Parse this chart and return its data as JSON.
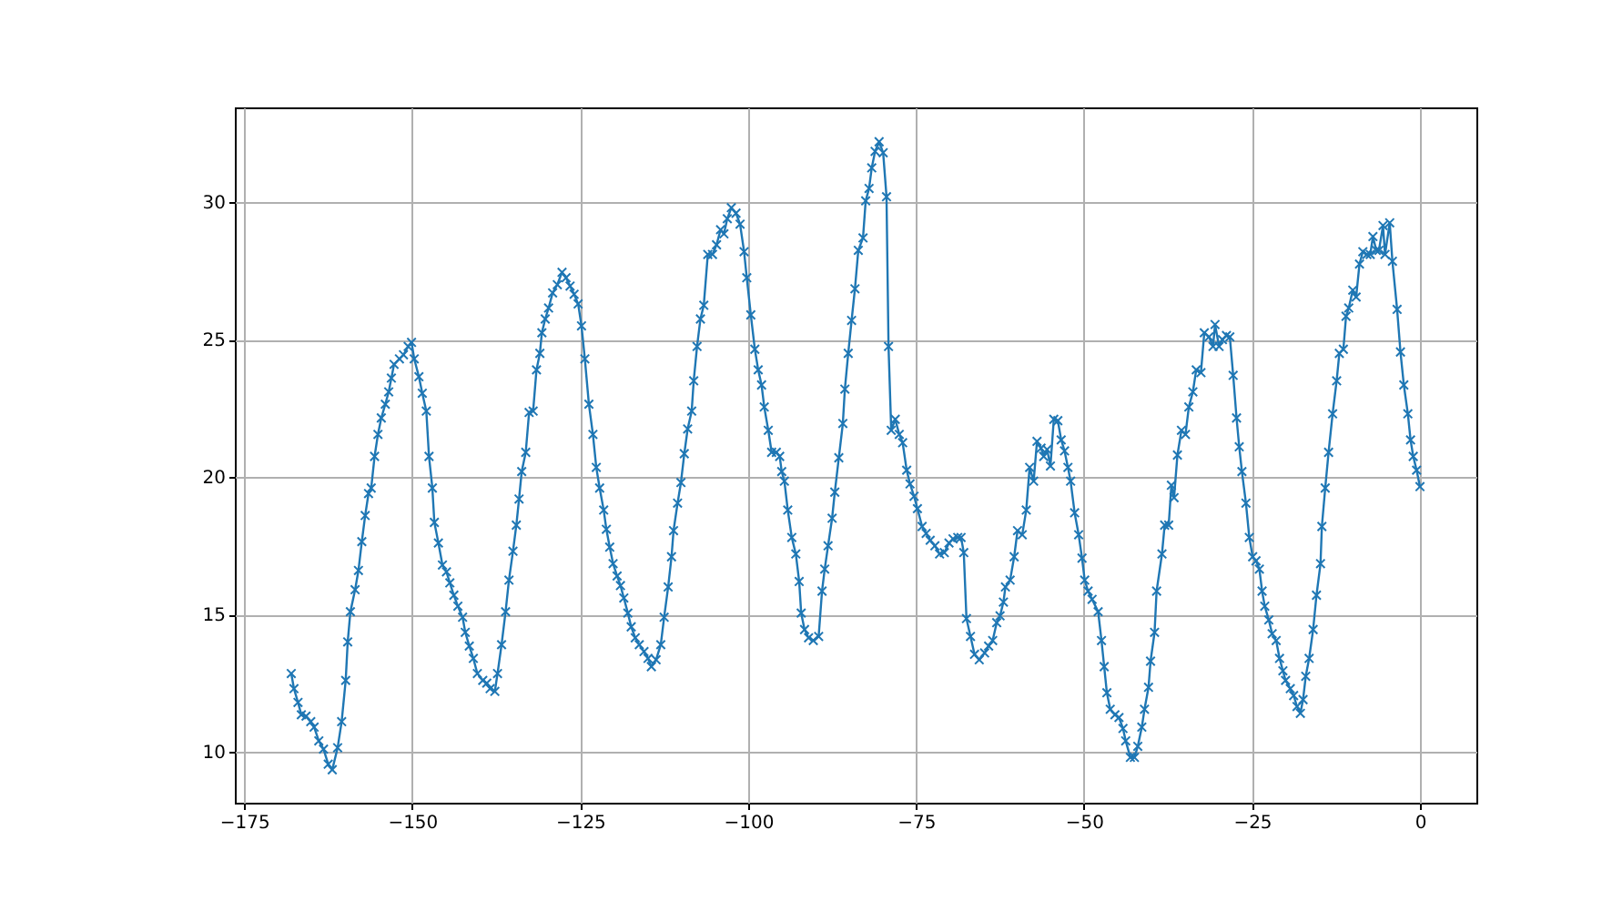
{
  "chart_data": {
    "type": "line",
    "marker": "cross",
    "grid": true,
    "line_style": "solid",
    "xlim": [
      -176.4,
      8.4
    ],
    "ylim": [
      8.15,
      33.45
    ],
    "xticks": [
      -175,
      -150,
      -125,
      -100,
      -75,
      -50,
      -25,
      0
    ],
    "yticks": [
      10,
      15,
      20,
      25,
      30
    ],
    "series": [
      {
        "color": "#1f77b4",
        "x": [
          -168,
          -167.6,
          -167.0,
          -166.5,
          -165.8,
          -165.1,
          -164.6,
          -163.9,
          -163.2,
          -162.5,
          -161.9,
          -161.1,
          -160.5,
          -159.9,
          -159.6,
          -159.2,
          -158.5,
          -158.0,
          -157.5,
          -157.0,
          -156.5,
          -156.1,
          -155.6,
          -155.1,
          -154.6,
          -154.0,
          -153.5,
          -153.1,
          -152.7,
          -151.9,
          -151.3,
          -150.6,
          -150.1,
          -149.7,
          -149.0,
          -148.5,
          -147.9,
          -147.5,
          -147.0,
          -146.7,
          -146.1,
          -145.5,
          -144.9,
          -144.4,
          -143.8,
          -143.2,
          -142.5,
          -142.1,
          -141.5,
          -140.9,
          -140.3,
          -139.5,
          -138.9,
          -138.4,
          -137.7,
          -137.3,
          -136.7,
          -136.1,
          -135.6,
          -135.0,
          -134.5,
          -134.1,
          -133.7,
          -133.1,
          -132.6,
          -132.0,
          -131.5,
          -131.0,
          -130.7,
          -130.2,
          -129.7,
          -129.1,
          -128.4,
          -127.7,
          -127.1,
          -126.5,
          -125.9,
          -125.3,
          -124.8,
          -124.3,
          -123.7,
          -123.1,
          -122.6,
          -122.1,
          -121.5,
          -121.1,
          -120.6,
          -120.1,
          -119.5,
          -119.0,
          -118.5,
          -117.9,
          -117.4,
          -116.8,
          -116.2,
          -115.5,
          -114.9,
          -114.4,
          -113.7,
          -113.0,
          -112.5,
          -111.9,
          -111.4,
          -111.1,
          -110.5,
          -110.0,
          -109.5,
          -109.0,
          -108.4,
          -108.1,
          -107.6,
          -107.1,
          -106.6,
          -106.0,
          -105.3,
          -104.7,
          -104.1,
          -103.6,
          -103.1,
          -102.5,
          -101.8,
          -101.2,
          -100.6,
          -100.2,
          -99.6,
          -99.0,
          -98.5,
          -98.0,
          -97.6,
          -97.0,
          -96.5,
          -95.8,
          -95.3,
          -95.0,
          -94.6,
          -94.1,
          -93.5,
          -92.9,
          -92.4,
          -92.1,
          -91.6,
          -91.0,
          -90.3,
          -89.5,
          -89.0,
          -88.6,
          -88.1,
          -87.5,
          -87.1,
          -86.5,
          -85.9,
          -85.6,
          -85.1,
          -84.6,
          -84.1,
          -83.6,
          -82.9,
          -82.5,
          -82.0,
          -81.6,
          -81.1,
          -80.5,
          -79.9,
          -79.4,
          -79.1,
          -78.7,
          -78.1,
          -77.5,
          -77.0,
          -76.4,
          -75.9,
          -75.3,
          -74.8,
          -74.1,
          -73.5,
          -72.9,
          -72.2,
          -71.5,
          -70.8,
          -70.1,
          -69.5,
          -68.8,
          -68.3,
          -67.9,
          -67.5,
          -66.9,
          -66.3,
          -65.6,
          -64.8,
          -64.2,
          -63.6,
          -63.0,
          -62.5,
          -62.0,
          -61.7,
          -61.0,
          -60.4,
          -59.9,
          -59.2,
          -58.6,
          -58.1,
          -57.5,
          -57.0,
          -56.4,
          -56.0,
          -55.5,
          -55.0,
          -54.5,
          -53.9,
          -53.4,
          -52.9,
          -52.4,
          -52.0,
          -51.4,
          -50.8,
          -50.3,
          -49.9,
          -49.4,
          -48.8,
          -47.9,
          -47.4,
          -47.0,
          -46.6,
          -46.1,
          -45.4,
          -44.8,
          -44.2,
          -43.8,
          -43.1,
          -42.5,
          -42.0,
          -41.4,
          -41.0,
          -40.4,
          -40.1,
          -39.5,
          -39.2,
          -38.4,
          -38.0,
          -37.4,
          -37.0,
          -36.6,
          -36.1,
          -35.5,
          -34.9,
          -34.4,
          -33.8,
          -33.3,
          -32.6,
          -32.1,
          -31.4,
          -30.8,
          -30.5,
          -29.9,
          -29.4,
          -28.8,
          -28.3,
          -27.8,
          -27.3,
          -26.9,
          -26.5,
          -25.9,
          -25.4,
          -24.9,
          -24.4,
          -23.9,
          -23.5,
          -23.1,
          -22.5,
          -22.0,
          -21.4,
          -20.9,
          -20.4,
          -20.0,
          -19.3,
          -18.8,
          -18.3,
          -17.8,
          -17.4,
          -17.0,
          -16.5,
          -15.9,
          -15.4,
          -14.8,
          -14.6,
          -14.1,
          -13.6,
          -13.0,
          -12.4,
          -12.0,
          -11.4,
          -11.0,
          -10.6,
          -10.0,
          -9.5,
          -9.0,
          -8.5,
          -7.9,
          -7.4,
          -7.0,
          -6.5,
          -6.1,
          -5.5,
          -5.2,
          -4.5,
          -4.1,
          -3.4,
          -2.9,
          -2.4,
          -1.8,
          -1.4,
          -1.0,
          -0.5,
          0
        ],
        "values": [
          12.85,
          12.3,
          11.8,
          11.35,
          11.3,
          11.1,
          10.9,
          10.4,
          10.1,
          9.55,
          9.35,
          10.15,
          11.1,
          12.6,
          14.0,
          15.1,
          15.9,
          16.6,
          17.65,
          18.6,
          19.4,
          19.6,
          20.75,
          21.55,
          22.15,
          22.65,
          23.1,
          23.6,
          24.1,
          24.3,
          24.45,
          24.75,
          24.9,
          24.3,
          23.65,
          23.05,
          22.4,
          20.75,
          19.6,
          18.35,
          17.6,
          16.8,
          16.55,
          16.15,
          15.7,
          15.3,
          14.9,
          14.35,
          13.85,
          13.4,
          12.85,
          12.6,
          12.5,
          12.3,
          12.2,
          12.85,
          13.9,
          15.1,
          16.25,
          17.3,
          18.25,
          19.2,
          20.2,
          20.9,
          22.35,
          22.4,
          23.9,
          24.5,
          25.25,
          25.75,
          26.15,
          26.7,
          27.0,
          27.45,
          27.25,
          26.95,
          26.65,
          26.3,
          25.5,
          24.3,
          22.65,
          21.55,
          20.35,
          19.6,
          18.8,
          18.1,
          17.45,
          16.85,
          16.4,
          16.05,
          15.6,
          15.05,
          14.55,
          14.15,
          13.9,
          13.65,
          13.4,
          13.1,
          13.35,
          13.9,
          14.9,
          16.0,
          17.1,
          18.05,
          19.05,
          19.8,
          20.85,
          21.75,
          22.4,
          23.5,
          24.75,
          25.75,
          26.25,
          28.1,
          28.1,
          28.45,
          29.0,
          28.85,
          29.4,
          29.8,
          29.6,
          29.2,
          28.2,
          27.25,
          25.9,
          24.65,
          23.9,
          23.35,
          22.55,
          21.7,
          20.9,
          20.9,
          20.75,
          20.2,
          19.85,
          18.8,
          17.8,
          17.2,
          16.2,
          15.05,
          14.45,
          14.15,
          14.05,
          14.2,
          15.85,
          16.65,
          17.5,
          18.5,
          19.45,
          20.7,
          21.95,
          23.2,
          24.5,
          25.7,
          26.85,
          28.25,
          28.7,
          30.05,
          30.5,
          31.25,
          31.85,
          32.2,
          31.8,
          30.2,
          24.75,
          21.7,
          22.1,
          21.55,
          21.25,
          20.25,
          19.75,
          19.3,
          18.85,
          18.2,
          17.95,
          17.7,
          17.5,
          17.2,
          17.25,
          17.6,
          17.75,
          17.8,
          17.8,
          17.25,
          14.85,
          14.2,
          13.55,
          13.35,
          13.6,
          13.85,
          14.05,
          14.7,
          14.95,
          15.45,
          16.0,
          16.25,
          17.1,
          18.05,
          17.9,
          18.8,
          20.35,
          19.85,
          21.3,
          21.05,
          20.75,
          21.0,
          20.4,
          22.1,
          22.05,
          21.35,
          20.95,
          20.35,
          19.85,
          18.7,
          17.9,
          17.05,
          16.25,
          15.85,
          15.55,
          15.1,
          14.05,
          13.1,
          12.15,
          11.55,
          11.35,
          11.25,
          10.85,
          10.4,
          9.8,
          9.8,
          10.2,
          10.9,
          11.55,
          12.35,
          13.3,
          14.35,
          15.85,
          17.2,
          18.25,
          18.25,
          19.7,
          19.25,
          20.8,
          21.7,
          21.55,
          22.55,
          23.1,
          23.9,
          23.8,
          25.25,
          25.1,
          24.75,
          25.55,
          24.75,
          25.0,
          25.15,
          25.1,
          23.7,
          22.15,
          21.1,
          20.2,
          19.05,
          17.8,
          17.1,
          16.95,
          16.65,
          15.85,
          15.3,
          14.8,
          14.3,
          14.05,
          13.4,
          12.95,
          12.6,
          12.3,
          12.05,
          11.65,
          11.4,
          11.9,
          12.75,
          13.4,
          14.45,
          15.7,
          16.85,
          18.2,
          19.6,
          20.9,
          22.3,
          23.5,
          24.5,
          24.65,
          25.85,
          26.15,
          26.8,
          26.55,
          27.75,
          28.2,
          28.1,
          28.1,
          28.75,
          28.25,
          28.25,
          29.15,
          28.1,
          29.25,
          27.85,
          26.1,
          24.55,
          23.35,
          22.3,
          21.35,
          20.75,
          20.25,
          19.65
        ]
      }
    ]
  }
}
